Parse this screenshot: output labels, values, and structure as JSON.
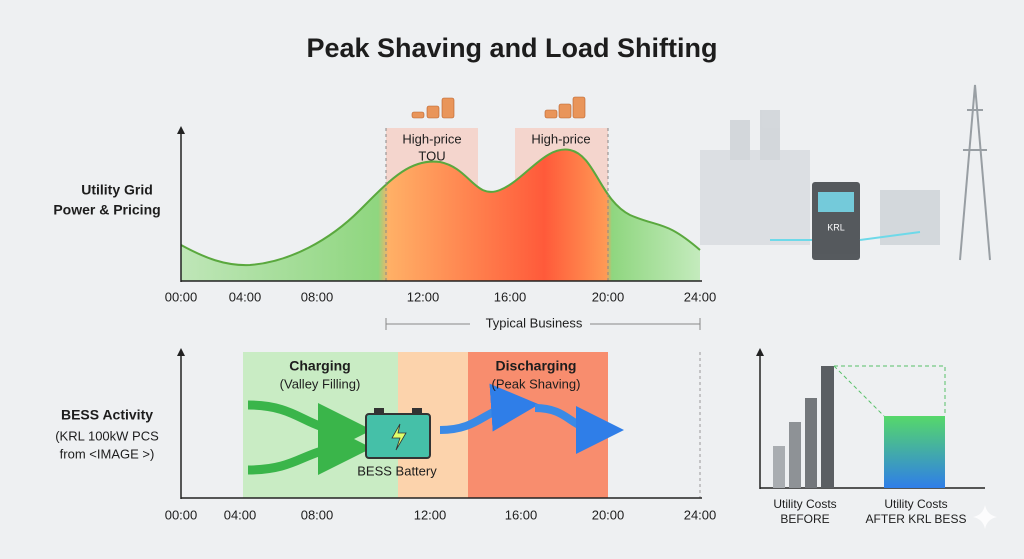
{
  "title": "Peak Shaving and Load Shifting",
  "grid_panel": {
    "label": [
      "Utility Grid",
      "Power & Pricing"
    ],
    "zones": [
      {
        "lines": [
          "High-price",
          "TOU"
        ]
      },
      {
        "lines": [
          "High-price"
        ]
      }
    ],
    "time_ticks": [
      "00:00",
      "04:00",
      "08:00",
      "12:00",
      "16:00",
      "20:00",
      "24:00"
    ],
    "span_label": "Typical Business"
  },
  "bess_panel": {
    "label": [
      "BESS Activity",
      "(KRL 100kW PCS",
      "from <IMAGE >)"
    ],
    "charging": {
      "title": "Charging",
      "subtitle": "(Valley Filling)"
    },
    "discharging": {
      "title": "Discharging",
      "subtitle": "(Peak Shaving)"
    },
    "battery_label": "BESS Battery",
    "time_ticks": [
      "00:00",
      "04:00",
      "08:00",
      "12:00",
      "16:00",
      "20:00",
      "24:00"
    ]
  },
  "cost_panel": {
    "before": [
      "Utility Costs",
      "BEFORE"
    ],
    "after": [
      "Utility Costs",
      "AFTER KRL BESS"
    ]
  },
  "cabinet_label": "KRL"
}
